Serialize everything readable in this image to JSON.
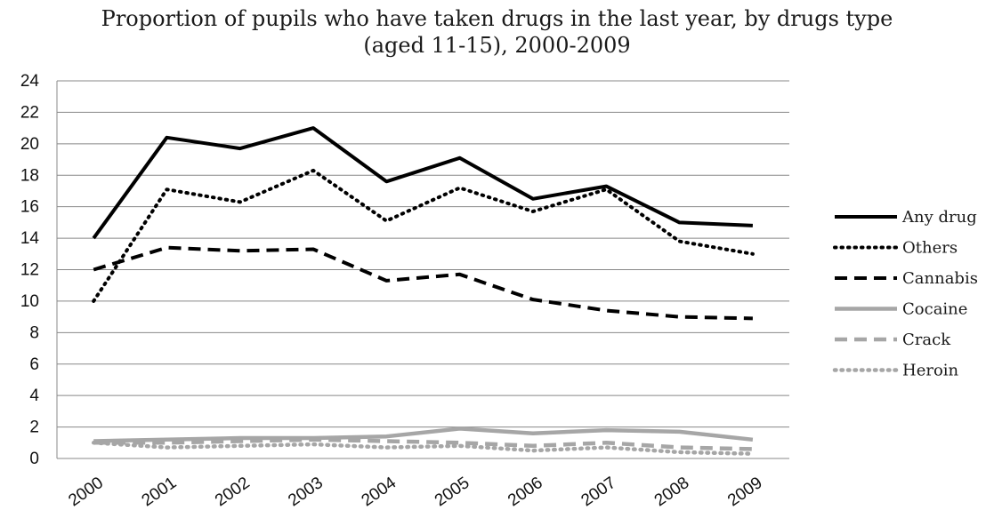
{
  "chart_data": {
    "type": "line",
    "title": "Proportion of pupils who have taken drugs in the last year, by drugs type",
    "subtitle": "(aged 11-15), 2000-2009",
    "x": [
      "2000",
      "2001",
      "2002",
      "2003",
      "2004",
      "2005",
      "2006",
      "2007",
      "2008",
      "2009"
    ],
    "ylim": [
      0,
      24
    ],
    "yticks": [
      "0",
      "2",
      "4",
      "6",
      "8",
      "10",
      "12",
      "14",
      "16",
      "18",
      "20",
      "22",
      "24"
    ],
    "grid": true,
    "legend_position": "right",
    "series": [
      {
        "name": "Any drug",
        "color": "#000000",
        "style": "solid",
        "values": [
          14,
          20.4,
          19.7,
          21,
          17.6,
          19.1,
          16.5,
          17.3,
          15,
          14.8
        ]
      },
      {
        "name": "Others",
        "color": "#000000",
        "style": "dotted",
        "values": [
          10,
          17.1,
          16.3,
          18.3,
          15.1,
          17.2,
          15.7,
          17.1,
          13.8,
          13
        ]
      },
      {
        "name": "Cannabis",
        "color": "#000000",
        "style": "dashed",
        "values": [
          12,
          13.4,
          13.2,
          13.3,
          11.3,
          11.7,
          10.1,
          9.4,
          9,
          8.9
        ]
      },
      {
        "name": "Cocaine",
        "color": "#a6a6a6",
        "style": "solid",
        "values": [
          1.1,
          1.2,
          1.3,
          1.3,
          1.4,
          1.9,
          1.6,
          1.8,
          1.7,
          1.2
        ]
      },
      {
        "name": "Crack",
        "color": "#a6a6a6",
        "style": "dashed",
        "values": [
          1,
          1,
          1.1,
          1.2,
          1.1,
          1,
          0.8,
          1,
          0.7,
          0.6
        ]
      },
      {
        "name": "Heroin",
        "color": "#a6a6a6",
        "style": "dotted",
        "values": [
          1,
          0.7,
          0.8,
          0.9,
          0.7,
          0.8,
          0.5,
          0.7,
          0.4,
          0.3
        ]
      }
    ]
  }
}
